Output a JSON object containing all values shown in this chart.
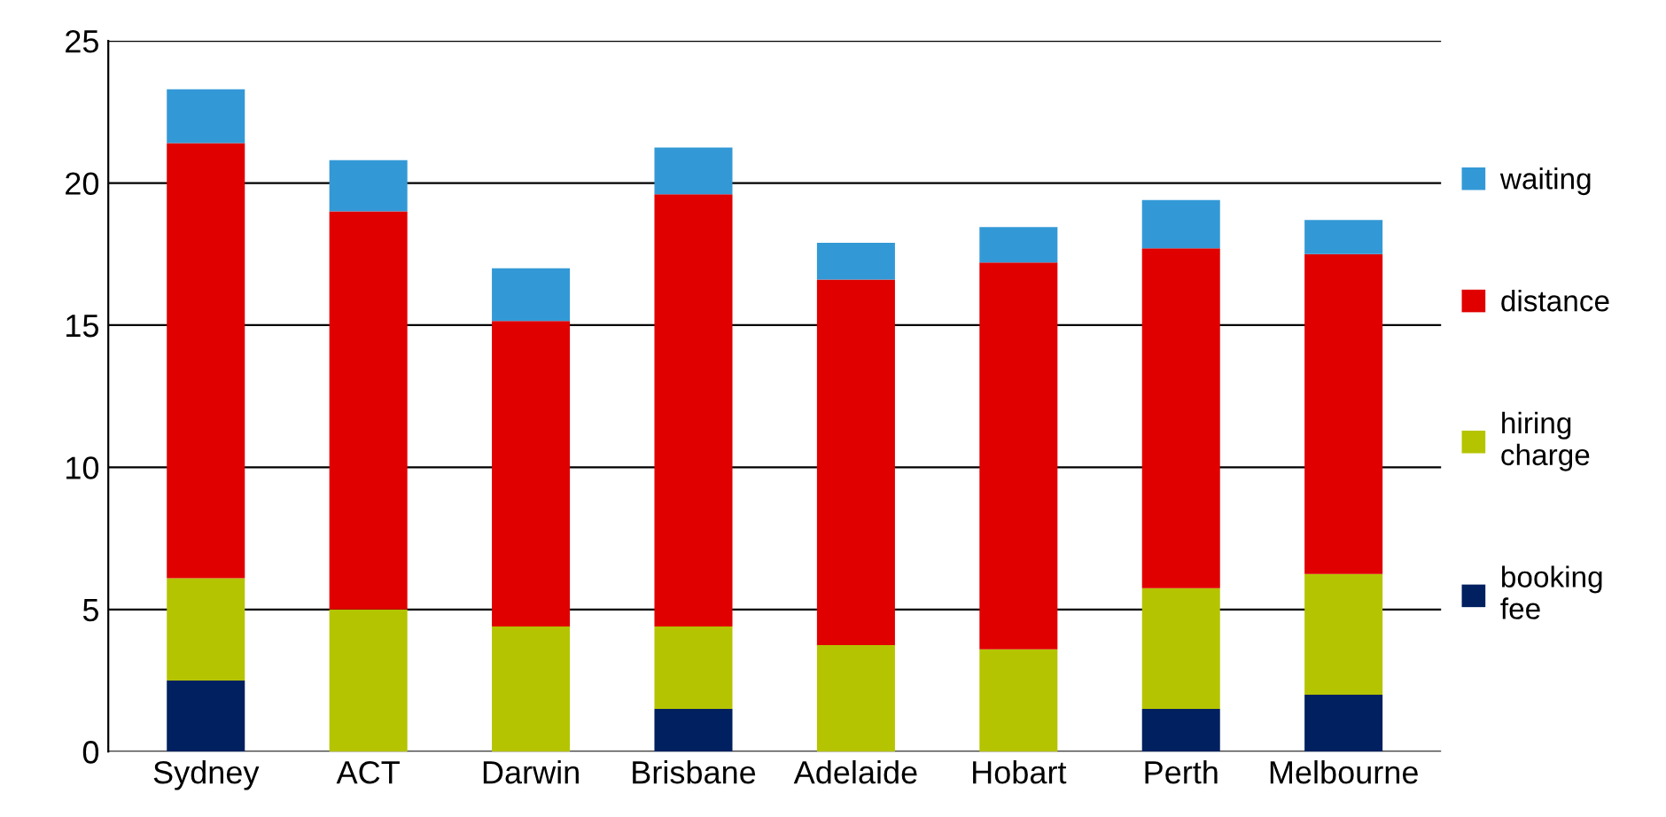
{
  "chart_data": {
    "type": "bar",
    "stacked": true,
    "categories": [
      "Sydney",
      "ACT",
      "Darwin",
      "Brisbane",
      "Adelaide",
      "Hobart",
      "Perth",
      "Melbourne"
    ],
    "series": [
      {
        "name": "booking fee",
        "color": "#002060",
        "values": [
          2.5,
          0,
          0,
          1.5,
          0,
          0,
          1.5,
          2.0
        ]
      },
      {
        "name": "hiring charge",
        "color": "#b5c400",
        "values": [
          3.6,
          5.0,
          4.4,
          2.9,
          3.75,
          3.6,
          4.25,
          4.25
        ]
      },
      {
        "name": "distance",
        "color": "#e00000",
        "values": [
          15.3,
          14.0,
          10.75,
          15.2,
          12.85,
          13.6,
          11.95,
          11.25
        ]
      },
      {
        "name": "waiting",
        "color": "#3399d6",
        "values": [
          1.9,
          1.8,
          1.85,
          1.65,
          1.3,
          1.25,
          1.7,
          1.2
        ]
      }
    ],
    "ylim": [
      0,
      25
    ],
    "yticks": [
      0,
      5,
      10,
      15,
      20,
      25
    ],
    "grid": "y",
    "legend": "right"
  }
}
